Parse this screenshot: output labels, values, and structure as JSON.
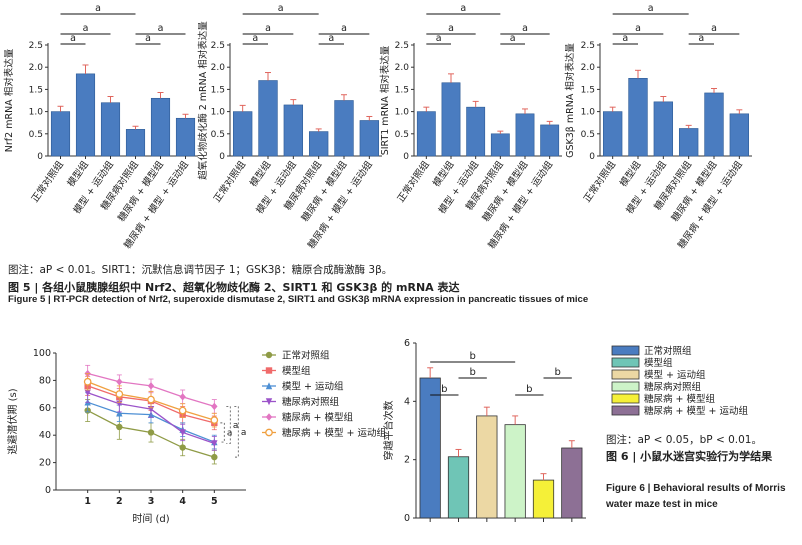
{
  "figure5": {
    "note": "图注：aP < 0.01。SIRT1：沉默信息调节因子 1；GSK3β：糖原合成酶激酶 3β。",
    "title_cn": "图 5 | 各组小鼠胰腺组织中 Nrf2、超氧化物歧化酶 2、SIRT1 和 GSK3β 的 mRNA 表达",
    "title_en": "Figure 5  |  RT-PCR detection of Nrf2, superoxide dismutase 2, SIRT1 and GSK3β mRNA expression in pancreatic tissues of mice"
  },
  "figure6": {
    "note": "图注：aP < 0.05，bP < 0.01。",
    "title_cn": "图 6 | 小鼠水迷宫实验行为学结果",
    "title_en": "Figure 6  |  Behavioral results of Morris water maze test in mice"
  },
  "colors": {
    "bar_fill": "#4a7cc0",
    "bar_stroke": "#2d5a94",
    "err": "#e0665e"
  },
  "chart_data": [
    {
      "type": "bar",
      "id": "nrf2",
      "ylabel": "Nrf2 mRNA 相对表达量",
      "ylim": [
        0,
        2.5
      ],
      "yticks": [
        "0",
        "0.5",
        "1.0",
        "1.5",
        "2.0",
        "2.5"
      ],
      "categories": [
        "正常对照组",
        "模型组",
        "模型 + 运动组",
        "糖尿病对照组",
        "糖尿病 + 模型组",
        "糖尿病 + 模型 + 运动组"
      ],
      "values": [
        1.0,
        1.85,
        1.2,
        0.6,
        1.3,
        0.85
      ],
      "errors": [
        0.12,
        0.2,
        0.14,
        0.07,
        0.13,
        0.09
      ],
      "brackets": [
        {
          "from": 0,
          "to": 1,
          "label": "a",
          "level": 0
        },
        {
          "from": 0,
          "to": 2,
          "label": "a",
          "level": 1
        },
        {
          "from": 3,
          "to": 4,
          "label": "a",
          "level": 0
        },
        {
          "from": 3,
          "to": 5,
          "label": "a",
          "level": 1
        },
        {
          "from": 0,
          "to": 3,
          "label": "a",
          "level": 2
        }
      ]
    },
    {
      "type": "bar",
      "id": "sod2",
      "ylabel": "超氧化物歧化酶 2 mRNA 相对表达量",
      "ylim": [
        0,
        2.5
      ],
      "yticks": [
        "0",
        "0.5",
        "1.0",
        "1.5",
        "2.0",
        "2.5"
      ],
      "categories": [
        "正常对照组",
        "模型组",
        "模型 + 运动组",
        "糖尿病对照组",
        "糖尿病 + 模型组",
        "糖尿病 + 模型 + 运动组"
      ],
      "values": [
        1.0,
        1.7,
        1.15,
        0.55,
        1.25,
        0.8
      ],
      "errors": [
        0.14,
        0.18,
        0.12,
        0.06,
        0.13,
        0.09
      ],
      "brackets": [
        {
          "from": 0,
          "to": 1,
          "label": "a",
          "level": 0
        },
        {
          "from": 0,
          "to": 2,
          "label": "a",
          "level": 1
        },
        {
          "from": 3,
          "to": 4,
          "label": "a",
          "level": 0
        },
        {
          "from": 3,
          "to": 5,
          "label": "a",
          "level": 1
        },
        {
          "from": 0,
          "to": 3,
          "label": "a",
          "level": 2
        }
      ]
    },
    {
      "type": "bar",
      "id": "sirt1",
      "ylabel": "SIRT1 mRNA 相对表达量",
      "ylim": [
        0,
        2.5
      ],
      "yticks": [
        "0",
        "0.5",
        "1.0",
        "1.5",
        "2.0",
        "2.5"
      ],
      "categories": [
        "正常对照组",
        "模型组",
        "模型 + 运动组",
        "糖尿病对照组",
        "糖尿病 + 模型组",
        "糖尿病 + 模型 + 运动组"
      ],
      "values": [
        1.0,
        1.65,
        1.1,
        0.5,
        0.95,
        0.7
      ],
      "errors": [
        0.1,
        0.2,
        0.13,
        0.06,
        0.11,
        0.08
      ],
      "brackets": [
        {
          "from": 0,
          "to": 1,
          "label": "a",
          "level": 0
        },
        {
          "from": 0,
          "to": 2,
          "label": "a",
          "level": 1
        },
        {
          "from": 3,
          "to": 4,
          "label": "a",
          "level": 0
        },
        {
          "from": 3,
          "to": 5,
          "label": "a",
          "level": 1
        },
        {
          "from": 0,
          "to": 3,
          "label": "a",
          "level": 2
        }
      ]
    },
    {
      "type": "bar",
      "id": "gsk3b",
      "ylabel": "GSK3β mRNA 相对表达量",
      "ylim": [
        0,
        2.5
      ],
      "yticks": [
        "0",
        "0.5",
        "1.0",
        "1.5",
        "2.0",
        "2.5"
      ],
      "categories": [
        "正常对照组",
        "模型组",
        "模型 + 运动组",
        "糖尿病对照组",
        "糖尿病 + 模型组",
        "糖尿病 + 模型 + 运动组"
      ],
      "values": [
        1.0,
        1.75,
        1.22,
        0.62,
        1.42,
        0.95
      ],
      "errors": [
        0.1,
        0.18,
        0.12,
        0.07,
        0.1,
        0.09
      ],
      "brackets": [
        {
          "from": 0,
          "to": 1,
          "label": "a",
          "level": 0
        },
        {
          "from": 0,
          "to": 2,
          "label": "a",
          "level": 1
        },
        {
          "from": 3,
          "to": 4,
          "label": "a",
          "level": 0
        },
        {
          "from": 3,
          "to": 5,
          "label": "a",
          "level": 1
        },
        {
          "from": 0,
          "to": 3,
          "label": "a",
          "level": 2
        }
      ]
    },
    {
      "type": "line",
      "id": "latency",
      "xlabel": "时间 (d)",
      "ylabel": "逃避潜伏期 (s)",
      "x": [
        1,
        2,
        3,
        4,
        5
      ],
      "xlim": [
        0,
        6
      ],
      "ylim": [
        0,
        100
      ],
      "yticks": [
        0,
        20,
        40,
        60,
        80,
        100
      ],
      "legend_position": "right",
      "series": [
        {
          "name": "正常对照组",
          "values": [
            58,
            46,
            42,
            31,
            24
          ],
          "errors": [
            8,
            9,
            7,
            6,
            5
          ],
          "color": "#8f9b46",
          "marker": "circle"
        },
        {
          "name": "模型组",
          "values": [
            76,
            68,
            65,
            55,
            49
          ],
          "errors": [
            7,
            6,
            7,
            6,
            5
          ],
          "color": "#f06a6a",
          "marker": "square"
        },
        {
          "name": "模型 + 运动组",
          "values": [
            64,
            56,
            55,
            44,
            35
          ],
          "errors": [
            7,
            6,
            6,
            5,
            5
          ],
          "color": "#4d8fd4",
          "marker": "triangle"
        },
        {
          "name": "糖尿病对照组",
          "values": [
            71,
            63,
            59,
            42,
            34
          ],
          "errors": [
            7,
            6,
            6,
            6,
            5
          ],
          "color": "#9b53c9",
          "marker": "triangle-down"
        },
        {
          "name": "糖尿病 + 模型组",
          "values": [
            85,
            79,
            76,
            68,
            61
          ],
          "errors": [
            6,
            5,
            5,
            5,
            5
          ],
          "color": "#e276c2",
          "marker": "diamond"
        },
        {
          "name": "糖尿病 + 模型 + 运动组",
          "values": [
            79,
            70,
            66,
            58,
            51
          ],
          "errors": [
            6,
            6,
            6,
            5,
            5
          ],
          "color": "#f0a040",
          "marker": "circle-open"
        }
      ],
      "brackets": [
        {
          "from": 1,
          "to": 2,
          "label": "a"
        },
        {
          "from": 4,
          "to": 3,
          "label": "a"
        },
        {
          "from": 4,
          "to": 0,
          "label": "a"
        }
      ]
    },
    {
      "type": "bar",
      "id": "crossings",
      "ylabel": "穿越平台次数",
      "ylim": [
        0,
        6
      ],
      "yticks": [
        0,
        2,
        4,
        6
      ],
      "categories": [
        "正常对照组",
        "模型组",
        "模型 + 运动组",
        "糖尿病对照组",
        "糖尿病 + 模型组",
        "糖尿病 + 模型 + 运动组"
      ],
      "values": [
        4.8,
        2.1,
        3.5,
        3.2,
        1.3,
        2.4
      ],
      "errors": [
        0.35,
        0.25,
        0.3,
        0.3,
        0.22,
        0.25
      ],
      "colors": [
        "#4a7cc0",
        "#6fc5b6",
        "#ecd8a4",
        "#cdf3c8",
        "#f5f038",
        "#8d7095"
      ],
      "legend_position": "right",
      "brackets": [
        {
          "from": 0,
          "to": 1,
          "label": "b",
          "level": 0
        },
        {
          "from": 1,
          "to": 2,
          "label": "b",
          "level": 1
        },
        {
          "from": 3,
          "to": 4,
          "label": "b",
          "level": 0
        },
        {
          "from": 4,
          "to": 5,
          "label": "b",
          "level": 1
        },
        {
          "from": 0,
          "to": 3,
          "label": "b",
          "level": 2
        }
      ]
    }
  ]
}
